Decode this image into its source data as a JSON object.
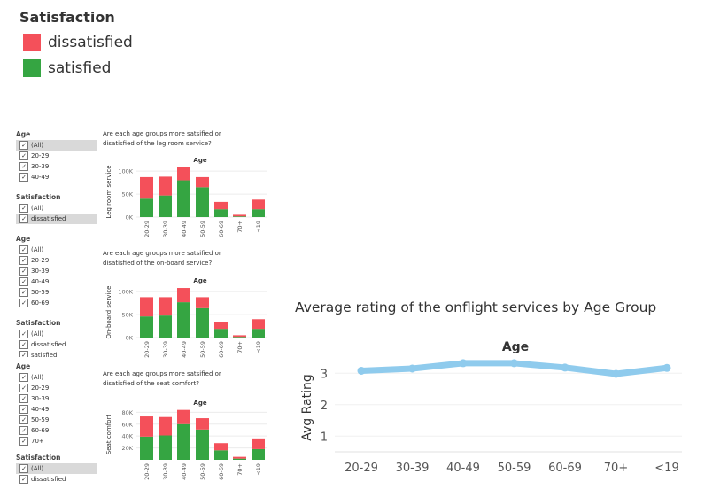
{
  "legend": {
    "title": "Satisfaction",
    "items": [
      {
        "label": "dissatisfied",
        "color": "#f4505a"
      },
      {
        "label": "satisfied",
        "color": "#35a542"
      }
    ]
  },
  "filters": [
    {
      "age_title": "Age",
      "age_items": [
        {
          "label": "(All)",
          "highlighted": true
        },
        {
          "label": "20-29"
        },
        {
          "label": "30-39"
        },
        {
          "label": "40-49"
        }
      ],
      "sat_title": "Satisfaction",
      "sat_items": [
        {
          "label": "(All)"
        },
        {
          "label": "dissatisfied",
          "highlighted": true
        }
      ]
    },
    {
      "age_title": "Age",
      "age_items": [
        {
          "label": "(All)"
        },
        {
          "label": "20-29"
        },
        {
          "label": "30-39"
        },
        {
          "label": "40-49"
        },
        {
          "label": "50-59"
        },
        {
          "label": "60-69"
        }
      ],
      "sat_title": "Satisfaction",
      "sat_items": [
        {
          "label": "(All)"
        },
        {
          "label": "dissatisfied"
        },
        {
          "label": "satisfied"
        }
      ]
    },
    {
      "age_title": "Age",
      "age_items": [
        {
          "label": "(All)"
        },
        {
          "label": "20-29"
        },
        {
          "label": "30-39"
        },
        {
          "label": "40-49"
        },
        {
          "label": "50-59"
        },
        {
          "label": "60-69"
        },
        {
          "label": "70+"
        }
      ],
      "sat_title": "Satisfaction",
      "sat_items": [
        {
          "label": "(All)",
          "highlighted": true
        },
        {
          "label": "dissatisfied"
        }
      ]
    }
  ],
  "chart_data": [
    {
      "type": "bar",
      "stacked": true,
      "question": "Are each age groups more satsified or disatisfied of the leg room service?",
      "title": "Age",
      "ylabel": "Leg room service",
      "categories": [
        "20-29",
        "30-39",
        "40-49",
        "50-59",
        "60-69",
        "70+",
        "<19"
      ],
      "series": [
        {
          "name": "satisfied",
          "values": [
            40000,
            47000,
            80000,
            65000,
            17000,
            1500,
            17000
          ]
        },
        {
          "name": "dissatisfied",
          "values": [
            47000,
            41000,
            30000,
            22000,
            16000,
            3500,
            21000
          ]
        }
      ],
      "ylim": [
        0,
        110000
      ],
      "yticks": [
        0,
        50000,
        100000
      ],
      "ytick_labels": [
        "0K",
        "50K",
        "100K"
      ]
    },
    {
      "type": "bar",
      "stacked": true,
      "question": "Are each age groups more satsified or disatisfied of the on-board service?",
      "title": "Age",
      "ylabel": "On-board service",
      "categories": [
        "20-29",
        "30-39",
        "40-49",
        "50-59",
        "60-69",
        "70+",
        "<19"
      ],
      "series": [
        {
          "name": "satisfied",
          "values": [
            46000,
            48000,
            77000,
            64000,
            19000,
            1500,
            19000
          ]
        },
        {
          "name": "dissatisfied",
          "values": [
            42000,
            40000,
            31000,
            24000,
            15000,
            3500,
            21000
          ]
        }
      ],
      "ylim": [
        0,
        110000
      ],
      "yticks": [
        0,
        50000,
        100000
      ],
      "ytick_labels": [
        "0K",
        "50K",
        "100K"
      ]
    },
    {
      "type": "bar",
      "stacked": true,
      "question": "Are each age groups more satsified or disatisfied of the seat comfort?",
      "title": "Age",
      "ylabel": "Seat comfort",
      "categories": [
        "20-29",
        "30-39",
        "40-49",
        "50-59",
        "60-69",
        "70+",
        "<19"
      ],
      "series": [
        {
          "name": "satisfied",
          "values": [
            39000,
            41000,
            60000,
            51000,
            16000,
            2000,
            18000
          ]
        },
        {
          "name": "dissatisfied",
          "values": [
            34000,
            31000,
            24000,
            19000,
            12000,
            3000,
            18000
          ]
        }
      ],
      "ylim": [
        0,
        85000
      ],
      "yticks": [
        20000,
        40000,
        60000,
        80000
      ],
      "ytick_labels": [
        "20K",
        "40K",
        "60K",
        "80K"
      ]
    },
    {
      "type": "line",
      "title": "Average rating of the onflight services by Age Group",
      "xlabel": "Age",
      "ylabel": "Avg Rating",
      "categories": [
        "20-29",
        "30-39",
        "40-49",
        "50-59",
        "60-69",
        "70+",
        "<19"
      ],
      "values": [
        3.08,
        3.15,
        3.32,
        3.32,
        3.18,
        2.98,
        3.17
      ],
      "ylim": [
        0.5,
        3.6
      ],
      "yticks": [
        1,
        2,
        3
      ],
      "color": "#8fcbed"
    }
  ]
}
